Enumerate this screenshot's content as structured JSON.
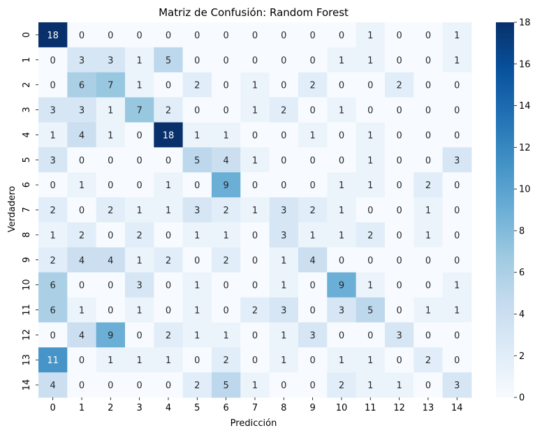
{
  "chart_data": {
    "type": "heatmap",
    "title": "Matriz de Confusión: Random Forest",
    "xlabel": "Predicción",
    "ylabel": "Verdadero",
    "x_categories": [
      "0",
      "1",
      "2",
      "3",
      "4",
      "5",
      "6",
      "7",
      "8",
      "9",
      "10",
      "11",
      "12",
      "13",
      "14"
    ],
    "y_categories": [
      "0",
      "1",
      "2",
      "3",
      "4",
      "5",
      "6",
      "7",
      "8",
      "9",
      "10",
      "11",
      "12",
      "13",
      "14"
    ],
    "values": [
      [
        18,
        0,
        0,
        0,
        0,
        0,
        0,
        0,
        0,
        0,
        0,
        1,
        0,
        0,
        1
      ],
      [
        0,
        3,
        3,
        1,
        5,
        0,
        0,
        0,
        0,
        0,
        1,
        1,
        0,
        0,
        1
      ],
      [
        0,
        6,
        7,
        1,
        0,
        2,
        0,
        1,
        0,
        2,
        0,
        0,
        2,
        0,
        0
      ],
      [
        3,
        3,
        1,
        7,
        2,
        0,
        0,
        1,
        2,
        0,
        1,
        0,
        0,
        0,
        0
      ],
      [
        1,
        4,
        1,
        0,
        18,
        1,
        1,
        0,
        0,
        1,
        0,
        1,
        0,
        0,
        0
      ],
      [
        3,
        0,
        0,
        0,
        0,
        5,
        4,
        1,
        0,
        0,
        0,
        1,
        0,
        0,
        3
      ],
      [
        0,
        1,
        0,
        0,
        1,
        0,
        9,
        0,
        0,
        0,
        1,
        1,
        0,
        2,
        0
      ],
      [
        2,
        0,
        2,
        1,
        1,
        3,
        2,
        1,
        3,
        2,
        1,
        0,
        0,
        1,
        0
      ],
      [
        1,
        2,
        0,
        2,
        0,
        1,
        1,
        0,
        3,
        1,
        1,
        2,
        0,
        1,
        0
      ],
      [
        2,
        4,
        4,
        1,
        2,
        0,
        2,
        0,
        1,
        4,
        0,
        0,
        0,
        0,
        0
      ],
      [
        6,
        0,
        0,
        3,
        0,
        1,
        0,
        0,
        1,
        0,
        9,
        1,
        0,
        0,
        1
      ],
      [
        6,
        1,
        0,
        1,
        0,
        1,
        0,
        2,
        3,
        0,
        3,
        5,
        0,
        1,
        1
      ],
      [
        0,
        4,
        9,
        0,
        2,
        1,
        1,
        0,
        1,
        3,
        0,
        0,
        3,
        0,
        0
      ],
      [
        11,
        0,
        1,
        1,
        1,
        0,
        2,
        0,
        1,
        0,
        1,
        1,
        0,
        2,
        0
      ],
      [
        4,
        0,
        0,
        0,
        0,
        2,
        5,
        1,
        0,
        0,
        2,
        1,
        1,
        0,
        3
      ]
    ],
    "colorbar": {
      "min": 0,
      "max": 18,
      "ticks": [
        0,
        2,
        4,
        6,
        8,
        10,
        12,
        14,
        16,
        18
      ],
      "colormap": "Blues",
      "low_color": "#f7fbff",
      "high_color": "#08306b"
    }
  }
}
